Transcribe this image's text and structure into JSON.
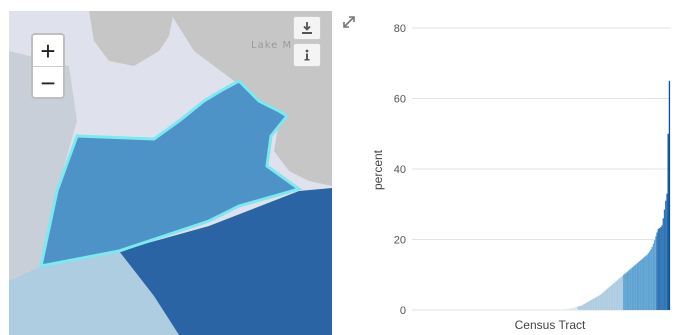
{
  "map": {
    "zoom_in_label": "+",
    "zoom_out_label": "−",
    "lake_label": "Lake M",
    "tools": [
      "download-icon",
      "info-icon"
    ],
    "colors": {
      "water": "#dfe2ec",
      "land": "#c6c6c6",
      "selected_tract": "#4e93c8",
      "dark_tract": "#2a64a4",
      "light_tract": "#aecde0",
      "highlight": "#7de8f0"
    }
  },
  "chart_data": {
    "type": "bar",
    "xlabel": "Census Tract",
    "ylabel": "percent",
    "ylim": [
      0,
      80
    ],
    "yticks": [
      0,
      20,
      40,
      60,
      80
    ],
    "grid": true,
    "highlight_color": "#00e5ff",
    "bands": [
      {
        "from": 0,
        "to": 1,
        "color": "#dbe8f2"
      },
      {
        "from": 1,
        "to": 10,
        "color": "#aecde0"
      },
      {
        "from": 10,
        "to": 22,
        "color": "#5fa3d2"
      },
      {
        "from": 22,
        "to": 35,
        "color": "#2f75b5"
      },
      {
        "from": 35,
        "to": 100,
        "color": "#08519c"
      }
    ],
    "values": [
      0,
      0,
      0,
      0,
      0,
      0,
      0,
      0,
      0,
      0,
      0,
      0,
      0,
      0,
      0,
      0,
      0,
      0,
      0,
      0,
      0,
      0,
      0,
      0,
      0,
      0,
      0,
      0,
      0,
      0,
      0,
      0,
      0,
      0,
      0,
      0,
      0,
      0,
      0,
      0,
      0,
      0,
      0,
      0,
      0,
      0,
      0,
      0,
      0,
      0,
      0,
      0,
      0,
      0,
      0,
      0,
      0,
      0,
      0,
      0,
      0,
      0,
      0,
      0,
      0,
      0,
      0,
      0,
      0,
      0,
      0,
      0,
      0,
      0,
      0,
      0,
      0,
      0,
      0,
      0,
      0,
      0,
      0,
      0,
      0,
      0,
      0,
      0,
      0,
      0,
      0,
      0,
      0,
      0,
      0,
      0,
      0,
      0,
      0,
      0,
      0,
      0,
      0,
      0,
      0,
      0,
      0,
      0,
      0,
      0,
      0,
      0,
      0,
      0,
      0,
      0,
      0,
      0,
      0,
      0,
      0,
      0.1,
      0.1,
      0.2,
      0.2,
      0.3,
      0.3,
      0.4,
      0.5,
      0.5,
      0.6,
      0.7,
      0.8,
      0.9,
      1.0,
      1.1,
      1.2,
      1.3,
      1.5,
      1.7,
      1.9,
      2.1,
      2.3,
      2.5,
      2.7,
      2.9,
      3.1,
      3.3,
      3.5,
      3.7,
      3.9,
      4.1,
      4.3,
      4.6,
      4.9,
      5.2,
      5.5,
      5.8,
      6.1,
      6.4,
      6.7,
      7.0,
      7.3,
      7.6,
      7.9,
      8.2,
      8.5,
      8.8,
      9.1,
      9.4,
      9.7,
      10.0,
      10.3,
      10.6,
      10.9,
      11.2,
      11.5,
      11.8,
      12.1,
      12.4,
      12.7,
      13.0,
      13.3,
      13.6,
      13.9,
      14.2,
      14.5,
      14.8,
      15.1,
      15.4,
      15.7,
      16.1,
      16.6,
      17.2,
      17.9,
      18.8,
      19.8,
      20.9,
      22.0,
      23.0,
      23.2,
      23.5,
      24.0,
      26.0,
      28.5,
      31.0,
      33.0,
      50.0,
      65.0
    ],
    "highlight_index": 228
  }
}
